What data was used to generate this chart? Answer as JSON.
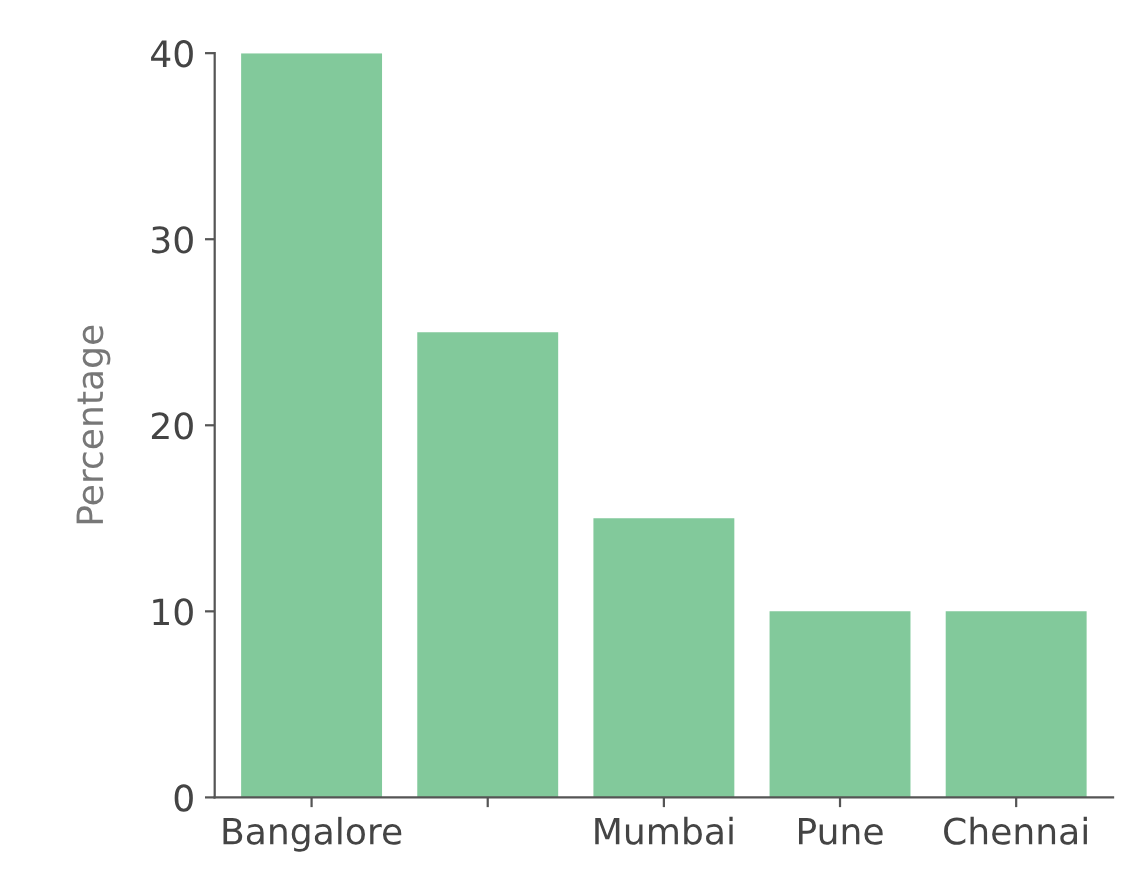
{
  "chart_data": {
    "type": "bar",
    "ylabel": "Percentage",
    "categories": [
      "Bangalore",
      null,
      "Mumbai",
      "Pune",
      "Chennai"
    ],
    "values": [
      40,
      25,
      15,
      10,
      10
    ],
    "color": "#82c99b",
    "ylim": [
      0,
      40
    ],
    "yticks": [
      0,
      10,
      20,
      30,
      40
    ],
    "grid": false
  }
}
